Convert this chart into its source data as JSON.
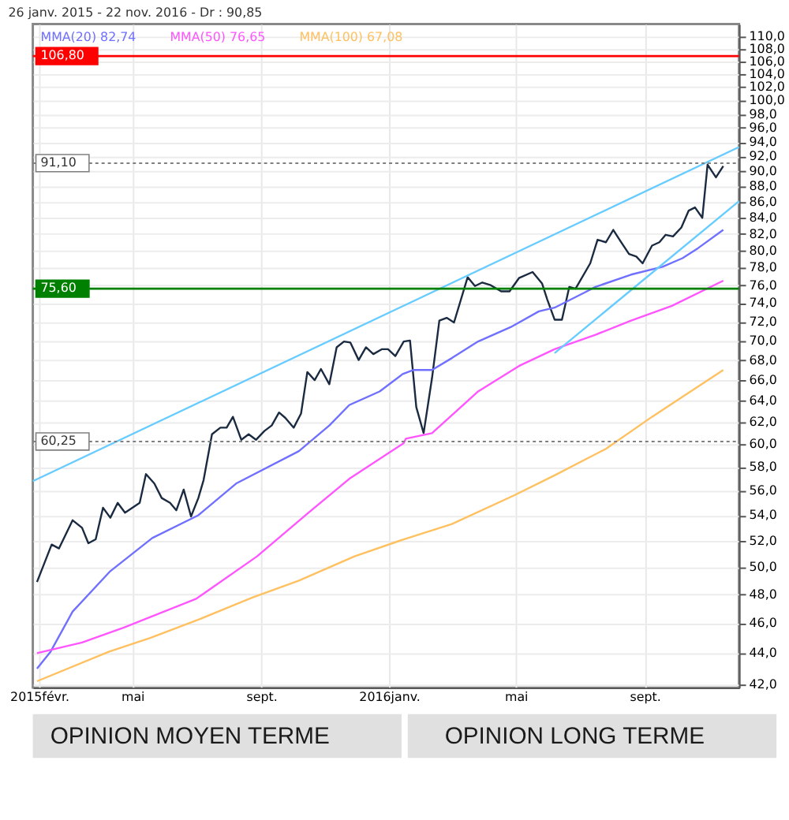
{
  "chart_data": {
    "type": "line",
    "title": "26 janv. 2015 - 22 nov. 2016 - Dr : 90,85",
    "annotations": [
      "OPINION MOYEN TERME",
      "OPINION LONG TERME"
    ],
    "x": [
      "2015-01-30",
      "2015-02-13",
      "2015-02-20",
      "2015-03-05",
      "2015-03-14",
      "2015-03-20",
      "2015-03-27",
      "2015-04-03",
      "2015-04-10",
      "2015-04-17",
      "2015-04-24",
      "2015-05-08",
      "2015-05-14",
      "2015-05-22",
      "2015-05-29",
      "2015-06-06",
      "2015-06-12",
      "2015-06-19",
      "2015-06-26",
      "2015-07-03",
      "2015-07-08",
      "2015-07-16",
      "2015-07-24",
      "2015-07-30",
      "2015-08-05",
      "2015-08-13",
      "2015-08-20",
      "2015-08-27",
      "2015-09-04",
      "2015-09-11",
      "2015-09-18",
      "2015-09-24",
      "2015-10-02",
      "2015-10-09",
      "2015-10-15",
      "2015-10-22",
      "2015-10-28",
      "2015-11-05",
      "2015-11-12",
      "2015-11-19",
      "2015-11-25",
      "2015-12-03",
      "2015-12-10",
      "2015-12-17",
      "2015-12-25",
      "2015-12-31",
      "2016-01-07",
      "2016-01-15",
      "2016-01-21",
      "2016-01-27",
      "2016-02-03",
      "2016-02-11",
      "2016-02-18",
      "2016-02-25",
      "2016-03-03",
      "2016-03-16",
      "2016-03-23",
      "2016-03-30",
      "2016-04-07",
      "2016-04-17",
      "2016-04-25",
      "2016-05-04",
      "2016-05-17",
      "2016-05-26",
      "2016-05-31",
      "2016-06-07",
      "2016-06-14",
      "2016-06-21",
      "2016-06-27",
      "2016-07-11",
      "2016-07-18",
      "2016-07-26",
      "2016-08-02",
      "2016-08-09",
      "2016-08-17",
      "2016-08-24",
      "2016-08-30",
      "2016-09-08",
      "2016-09-15",
      "2016-09-21",
      "2016-09-28",
      "2016-10-06",
      "2016-10-13",
      "2016-10-19",
      "2016-10-26",
      "2016-10-31",
      "2016-11-08",
      "2016-11-15"
    ],
    "series": [
      {
        "color": "#1a2a40",
        "values": [
          48.9,
          51.7,
          51.4,
          53.6,
          53.0,
          51.8,
          52.1,
          54.6,
          53.8,
          55.0,
          54.2,
          55.0,
          57.4,
          56.6,
          55.4,
          55.0,
          54.4,
          56.1,
          53.9,
          55.4,
          56.9,
          60.9,
          61.5,
          61.5,
          62.5,
          60.4,
          60.9,
          60.4,
          61.2,
          61.7,
          62.9,
          62.4,
          61.5,
          62.8,
          66.8,
          66.0,
          67.1,
          65.6,
          69.3,
          69.9,
          69.8,
          68.0,
          69.3,
          68.6,
          69.1,
          69.1,
          68.4,
          69.9,
          70.0,
          63.4,
          61.0,
          66.2,
          72.1,
          72.4,
          71.9,
          76.9,
          75.9,
          76.3,
          76.0,
          75.3,
          75.3,
          76.8,
          77.5,
          76.2,
          74.4,
          72.2,
          72.2,
          75.8,
          75.6,
          78.5,
          81.3,
          81.0,
          82.5,
          81.1,
          79.6,
          79.3,
          78.5,
          80.6,
          81.0,
          81.9,
          81.7,
          82.8,
          84.9,
          85.3,
          84.0,
          90.9,
          89.2,
          90.7
        ]
      },
      {
        "name": "MMA(20)  82,74",
        "color": "#7070ff",
        "x": [
          "2015-01-30",
          "2015-02-12",
          "2015-03-05",
          "2015-04-10",
          "2015-05-20",
          "2015-07-03",
          "2015-08-08",
          "2015-10-07",
          "2015-11-05",
          "2015-11-24",
          "2015-12-23",
          "2016-01-14",
          "2016-01-24",
          "2016-02-11",
          "2016-03-01",
          "2016-03-26",
          "2016-04-26",
          "2016-05-23",
          "2016-06-07",
          "2016-07-06",
          "2016-07-16",
          "2016-08-19",
          "2016-09-18",
          "2016-10-07",
          "2016-10-22",
          "2016-11-15"
        ],
        "values": [
          43.0,
          44.1,
          46.8,
          49.7,
          52.2,
          54.0,
          56.6,
          59.4,
          61.7,
          63.6,
          64.9,
          66.6,
          67.0,
          67.0,
          68.2,
          69.9,
          71.4,
          73.1,
          73.5,
          75.2,
          75.8,
          77.2,
          78.1,
          79.1,
          80.3,
          82.5
        ]
      },
      {
        "name": "MMA(50)  76,65",
        "color": "#ff55ff",
        "x": [
          "2015-01-30",
          "2015-03-14",
          "2015-04-23",
          "2015-07-01",
          "2015-08-28",
          "2015-10-16",
          "2015-11-24",
          "2016-01-15",
          "2016-01-17",
          "2016-02-11",
          "2016-03-26",
          "2016-05-04",
          "2016-06-07",
          "2016-07-16",
          "2016-08-19",
          "2016-09-27",
          "2016-11-15"
        ],
        "values": [
          44.0,
          44.7,
          45.7,
          47.7,
          50.8,
          54.2,
          57.0,
          60.1,
          60.5,
          61.0,
          64.9,
          67.4,
          69.1,
          70.6,
          72.1,
          73.7,
          76.5
        ]
      },
      {
        "name": "MMA(100)  67,08",
        "color": "#ffc060",
        "x": [
          "2015-01-30",
          "2015-04-09",
          "2015-05-18",
          "2015-07-05",
          "2015-08-24",
          "2015-10-07",
          "2015-11-29",
          "2016-01-15",
          "2016-03-01",
          "2016-04-29",
          "2016-06-07",
          "2016-07-26",
          "2016-09-08",
          "2016-11-15"
        ],
        "values": [
          42.2,
          44.1,
          45.0,
          46.3,
          47.8,
          49.0,
          50.8,
          52.1,
          53.3,
          55.6,
          57.3,
          59.6,
          62.5,
          67.0
        ]
      },
      {
        "color": "#66ccff",
        "x": [
          "2015-01-26",
          "2016-11-30"
        ],
        "values": [
          56.8,
          93.3
        ]
      },
      {
        "color": "#66ccff",
        "x": [
          "2016-06-07",
          "2016-11-30"
        ],
        "values": [
          68.7,
          86.1
        ]
      }
    ],
    "ref_lines": [
      {
        "axis": "y",
        "value": 106.8,
        "label": "106,80",
        "color": "#ff0000",
        "line_style": "solid"
      },
      {
        "axis": "y",
        "value": 75.6,
        "label": "75,60",
        "color": "#008000",
        "line_style": "solid"
      },
      {
        "axis": "y",
        "value": 91.1,
        "label": "91,10",
        "color": "#808080",
        "line_style": "dotted"
      },
      {
        "axis": "y",
        "value": 60.25,
        "label": "60,25",
        "color": "#808080",
        "line_style": "dotted"
      }
    ],
    "log": "y",
    "ylim": [
      41.8,
      112
    ],
    "yticks": [
      {
        "value": 42,
        "label": "42,0"
      },
      {
        "value": 44,
        "label": "44,0"
      },
      {
        "value": 46,
        "label": "46,0"
      },
      {
        "value": 48,
        "label": "48,0"
      },
      {
        "value": 50,
        "label": "50,0"
      },
      {
        "value": 52,
        "label": "52,0"
      },
      {
        "value": 54,
        "label": "54,0"
      },
      {
        "value": 56,
        "label": "56,0"
      },
      {
        "value": 58,
        "label": "58,0"
      },
      {
        "value": 60,
        "label": "60,0"
      },
      {
        "value": 62,
        "label": "62,0"
      },
      {
        "value": 64,
        "label": "64,0"
      },
      {
        "value": 66,
        "label": "66,0"
      },
      {
        "value": 68,
        "label": "68,0"
      },
      {
        "value": 70,
        "label": "70,0"
      },
      {
        "value": 72,
        "label": "72,0"
      },
      {
        "value": 74,
        "label": "74,0"
      },
      {
        "value": 76,
        "label": "76,0"
      },
      {
        "value": 78,
        "label": "78,0"
      },
      {
        "value": 80,
        "label": "80,0"
      },
      {
        "value": 82,
        "label": "82,0"
      },
      {
        "value": 84,
        "label": "84,0"
      },
      {
        "value": 86,
        "label": "86,0"
      },
      {
        "value": 88,
        "label": "88,0"
      },
      {
        "value": 90,
        "label": "90,0"
      },
      {
        "value": 92,
        "label": "92,0"
      },
      {
        "value": 94,
        "label": "94,0"
      },
      {
        "value": 96,
        "label": "96,0"
      },
      {
        "value": 98,
        "label": "98,0"
      },
      {
        "value": 100,
        "label": "100,0"
      },
      {
        "value": 102,
        "label": "102,0"
      },
      {
        "value": 104,
        "label": "104,0"
      },
      {
        "value": 106,
        "label": "106,0"
      },
      {
        "value": 108,
        "label": "108,0"
      },
      {
        "value": 110,
        "label": "110,0"
      }
    ],
    "xlim": [
      "2015-01-26",
      "2016-11-30"
    ],
    "xticks": [
      {
        "value": "2015-02-01",
        "label": "2015févr."
      },
      {
        "value": "2015-05-01",
        "label": "mai"
      },
      {
        "value": "2015-09-01",
        "label": "sept."
      },
      {
        "value": "2016-01-01",
        "label": "2016janv."
      },
      {
        "value": "2016-05-01",
        "label": "mai"
      },
      {
        "value": "2016-09-01",
        "label": "sept."
      }
    ],
    "grid": true,
    "legend": "top left",
    "line_style": "solid",
    "marker": "none"
  }
}
